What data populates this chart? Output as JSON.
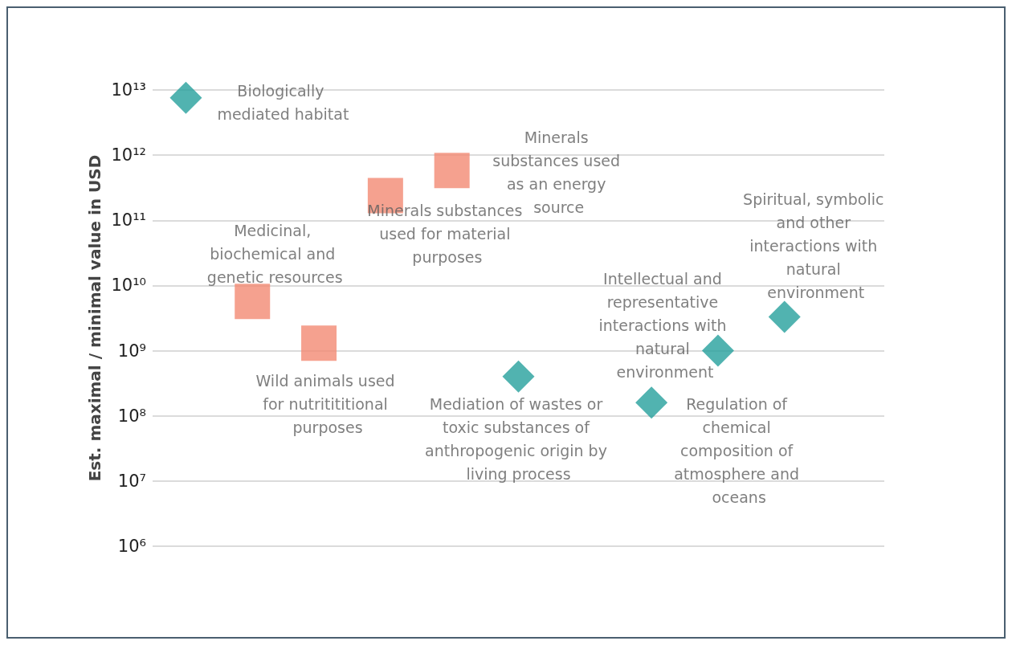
{
  "chart_data": {
    "type": "scatter",
    "ylabel": "Est. maximal / minimal value in USD",
    "categories": [
      null,
      null,
      null,
      null,
      null,
      null,
      null,
      null,
      null,
      null,
      null
    ],
    "log": "y",
    "ylim": [
      1000000,
      10000000000000
    ],
    "yticks": [
      {
        "value": 1000000,
        "label": "10⁶"
      },
      {
        "value": 10000000,
        "label": "10⁷"
      },
      {
        "value": 100000000,
        "label": "10⁸"
      },
      {
        "value": 1000000000,
        "label": "10⁹"
      },
      {
        "value": 10000000000,
        "label": "10¹⁰"
      },
      {
        "value": 100000000000,
        "label": "10¹¹"
      },
      {
        "value": 1000000000000,
        "label": "10¹²"
      },
      {
        "value": 10000000000000,
        "label": "10¹³"
      }
    ],
    "grid": "y",
    "tick_labels": "y",
    "series": [
      {
        "color": "#26a09c",
        "marker": "diamond",
        "values": [
          7600000000000,
          null,
          null,
          null,
          null,
          400000000,
          null,
          160000000,
          1000000000,
          3300000000,
          null
        ],
        "value_labels": [
          "Biologically mediated habitat",
          null,
          null,
          null,
          null,
          "Mediation of wastes or toxic substances of anthropogenic origin by living process",
          null,
          "Regulation of chemical composition of atmosphere and oceans",
          "Intellectual and representative interactions with natural environment",
          "Spiritual, symbolic and other interactions with natural environment",
          null
        ]
      },
      {
        "color": "#f28a73",
        "marker": "square",
        "values": [
          null,
          5700000000,
          1300000000,
          240000000000,
          580000000000,
          null,
          null,
          null,
          null,
          null,
          null
        ],
        "value_labels": [
          null,
          "Medicinal, biochemical and genetic resources",
          "Wild animals used for nutritititional purposes",
          "Minerals substances used for material purposes",
          "Minerals substances used as an energy source",
          null,
          null,
          null,
          null,
          null,
          null
        ]
      }
    ]
  }
}
